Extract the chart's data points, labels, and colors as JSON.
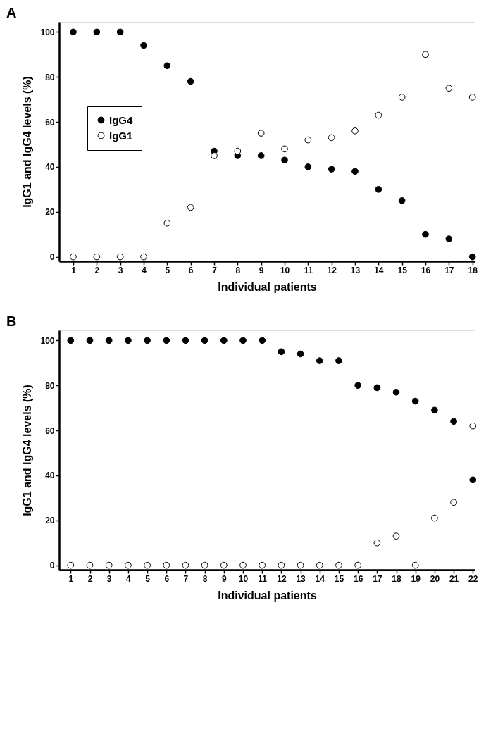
{
  "chart_data": [
    {
      "type": "scatter",
      "title": "A",
      "xlabel": "Individual patients",
      "ylabel": "IgG1 and IgG4 levels (%)",
      "x": [
        1,
        2,
        3,
        4,
        5,
        6,
        7,
        8,
        9,
        10,
        11,
        12,
        13,
        14,
        15,
        16,
        17,
        18
      ],
      "xlim": [
        0.4,
        18.1
      ],
      "xticks": [
        1,
        2,
        3,
        4,
        5,
        6,
        7,
        8,
        9,
        10,
        11,
        12,
        13,
        14,
        15,
        16,
        17,
        18
      ],
      "ylim": [
        -2,
        104.5
      ],
      "yticks": [
        0,
        20,
        40,
        60,
        80,
        100
      ],
      "series": [
        {
          "name": "IgG4",
          "color": "#000000",
          "values": [
            100,
            100,
            100,
            94,
            85,
            78,
            47,
            45,
            45,
            43,
            40,
            39,
            38,
            30,
            25,
            10,
            8,
            0
          ]
        },
        {
          "name": "IgG1",
          "color": "#ffffff",
          "values": [
            0,
            0,
            0,
            0,
            15,
            22,
            45,
            47,
            55,
            48,
            52,
            53,
            56,
            63,
            71,
            90,
            75,
            71
          ]
        }
      ],
      "marker": "circle",
      "legend": "left",
      "grid": false
    },
    {
      "type": "scatter",
      "title": "B",
      "xlabel": "Individual patients",
      "ylabel": "IgG1 and IgG4 levels (%)",
      "x": [
        1,
        2,
        3,
        4,
        5,
        6,
        7,
        8,
        9,
        10,
        11,
        12,
        13,
        14,
        15,
        16,
        17,
        18,
        19,
        20,
        21,
        22
      ],
      "xlim": [
        0.4,
        22.1
      ],
      "xticks": [
        1,
        2,
        3,
        4,
        5,
        6,
        7,
        8,
        9,
        10,
        11,
        12,
        13,
        14,
        15,
        16,
        17,
        18,
        19,
        20,
        21,
        22
      ],
      "ylim": [
        -2,
        104.5
      ],
      "yticks": [
        0,
        20,
        40,
        60,
        80,
        100
      ],
      "series": [
        {
          "name": "IgG4",
          "color": "#000000",
          "values": [
            100,
            100,
            100,
            100,
            100,
            100,
            100,
            100,
            100,
            100,
            100,
            95,
            94,
            91,
            91,
            80,
            79,
            77,
            73,
            69,
            64,
            38
          ]
        },
        {
          "name": "IgG1",
          "color": "#ffffff",
          "values": [
            0,
            0,
            0,
            0,
            0,
            0,
            0,
            0,
            0,
            0,
            0,
            0,
            0,
            0,
            0,
            0,
            10,
            13,
            0,
            21,
            28,
            62
          ]
        }
      ],
      "marker": "circle",
      "legend": "left",
      "grid": false
    }
  ]
}
